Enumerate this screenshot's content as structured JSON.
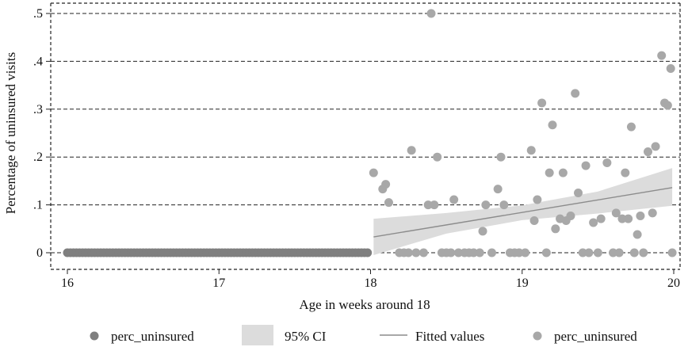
{
  "chart_data": {
    "type": "scatter",
    "title": "",
    "xlabel": "Age in weeks around 18",
    "ylabel": "Percentage of uninsured visits",
    "xlim": [
      16,
      20
    ],
    "ylim": [
      0,
      0.5
    ],
    "x_ticks": [
      {
        "value": 16,
        "label": "16"
      },
      {
        "value": 17,
        "label": "17"
      },
      {
        "value": 18,
        "label": "18"
      },
      {
        "value": 19,
        "label": "19"
      },
      {
        "value": 20,
        "label": "20"
      }
    ],
    "y_ticks": [
      {
        "value": 0,
        "label": "0"
      },
      {
        "value": 0.1,
        "label": ".1"
      },
      {
        "value": 0.2,
        "label": ".2"
      },
      {
        "value": 0.3,
        "label": ".3"
      },
      {
        "value": 0.4,
        "label": ".4"
      },
      {
        "value": 0.5,
        "label": ".5"
      }
    ],
    "grid": "horizontal dashed",
    "legend_position": "bottom",
    "colors": {
      "below_18": "#7f7f7f",
      "above_18": "#a8a8a8",
      "ci_band": "#dcdcdc",
      "fit_line": "#8c8c8c",
      "grid": "#222222"
    },
    "legend": [
      {
        "label": "perc_uninsured",
        "kind": "dark-marker"
      },
      {
        "label": "95% CI",
        "kind": "band"
      },
      {
        "label": "Fitted values",
        "kind": "line"
      },
      {
        "label": "perc_uninsured",
        "kind": "light-marker"
      }
    ],
    "series": [
      {
        "name": "perc_uninsured",
        "points_below_18": {
          "x_start": 16.0,
          "x_end": 17.98,
          "count": 100,
          "y": 0
        }
      },
      {
        "name": "perc_uninsured",
        "points": [
          {
            "x": 18.02,
            "y": 0.167
          },
          {
            "x": 18.08,
            "y": 0.133
          },
          {
            "x": 18.1,
            "y": 0.143
          },
          {
            "x": 18.12,
            "y": 0.105
          },
          {
            "x": 18.19,
            "y": 0
          },
          {
            "x": 18.22,
            "y": 0
          },
          {
            "x": 18.25,
            "y": 0
          },
          {
            "x": 18.27,
            "y": 0.214
          },
          {
            "x": 18.3,
            "y": 0
          },
          {
            "x": 18.35,
            "y": 0
          },
          {
            "x": 18.38,
            "y": 0.1
          },
          {
            "x": 18.4,
            "y": 0.5
          },
          {
            "x": 18.42,
            "y": 0.1
          },
          {
            "x": 18.44,
            "y": 0.2
          },
          {
            "x": 18.47,
            "y": 0
          },
          {
            "x": 18.5,
            "y": 0
          },
          {
            "x": 18.53,
            "y": 0
          },
          {
            "x": 18.55,
            "y": 0.111
          },
          {
            "x": 18.58,
            "y": 0
          },
          {
            "x": 18.62,
            "y": 0
          },
          {
            "x": 18.65,
            "y": 0
          },
          {
            "x": 18.68,
            "y": 0
          },
          {
            "x": 18.72,
            "y": 0
          },
          {
            "x": 18.74,
            "y": 0.045
          },
          {
            "x": 18.76,
            "y": 0.1
          },
          {
            "x": 18.8,
            "y": 0
          },
          {
            "x": 18.84,
            "y": 0.133
          },
          {
            "x": 18.86,
            "y": 0.2
          },
          {
            "x": 18.88,
            "y": 0.1
          },
          {
            "x": 18.92,
            "y": 0
          },
          {
            "x": 18.95,
            "y": 0
          },
          {
            "x": 18.98,
            "y": 0
          },
          {
            "x": 19.02,
            "y": 0
          },
          {
            "x": 19.06,
            "y": 0.214
          },
          {
            "x": 19.08,
            "y": 0.067
          },
          {
            "x": 19.1,
            "y": 0.111
          },
          {
            "x": 19.13,
            "y": 0.313
          },
          {
            "x": 19.16,
            "y": 0
          },
          {
            "x": 19.18,
            "y": 0.167
          },
          {
            "x": 19.2,
            "y": 0.267
          },
          {
            "x": 19.22,
            "y": 0.05
          },
          {
            "x": 19.25,
            "y": 0.071
          },
          {
            "x": 19.27,
            "y": 0.167
          },
          {
            "x": 19.29,
            "y": 0.067
          },
          {
            "x": 19.32,
            "y": 0.077
          },
          {
            "x": 19.35,
            "y": 0.333
          },
          {
            "x": 19.37,
            "y": 0.125
          },
          {
            "x": 19.4,
            "y": 0
          },
          {
            "x": 19.42,
            "y": 0.182
          },
          {
            "x": 19.44,
            "y": 0
          },
          {
            "x": 19.47,
            "y": 0.063
          },
          {
            "x": 19.5,
            "y": 0
          },
          {
            "x": 19.52,
            "y": 0.071
          },
          {
            "x": 19.56,
            "y": 0.188
          },
          {
            "x": 19.6,
            "y": 0
          },
          {
            "x": 19.62,
            "y": 0.083
          },
          {
            "x": 19.64,
            "y": 0
          },
          {
            "x": 19.66,
            "y": 0.071
          },
          {
            "x": 19.68,
            "y": 0.167
          },
          {
            "x": 19.7,
            "y": 0.071
          },
          {
            "x": 19.72,
            "y": 0.263
          },
          {
            "x": 19.74,
            "y": 0
          },
          {
            "x": 19.76,
            "y": 0.038
          },
          {
            "x": 19.78,
            "y": 0.077
          },
          {
            "x": 19.8,
            "y": 0
          },
          {
            "x": 19.83,
            "y": 0.211
          },
          {
            "x": 19.86,
            "y": 0.083
          },
          {
            "x": 19.88,
            "y": 0.222
          },
          {
            "x": 19.92,
            "y": 0.412
          },
          {
            "x": 19.94,
            "y": 0.313
          },
          {
            "x": 19.96,
            "y": 0.308
          },
          {
            "x": 19.98,
            "y": 0.385
          },
          {
            "x": 19.99,
            "y": 0
          }
        ]
      }
    ],
    "fit": {
      "name": "Fitted values",
      "x": [
        18.02,
        19.99
      ],
      "y": [
        0.033,
        0.136
      ]
    },
    "ci": {
      "name": "95% CI",
      "x": [
        18.02,
        18.5,
        19.0,
        19.5,
        19.99
      ],
      "lower": [
        -0.005,
        0.04,
        0.068,
        0.082,
        0.098
      ],
      "upper": [
        0.071,
        0.083,
        0.099,
        0.128,
        0.177
      ]
    }
  }
}
